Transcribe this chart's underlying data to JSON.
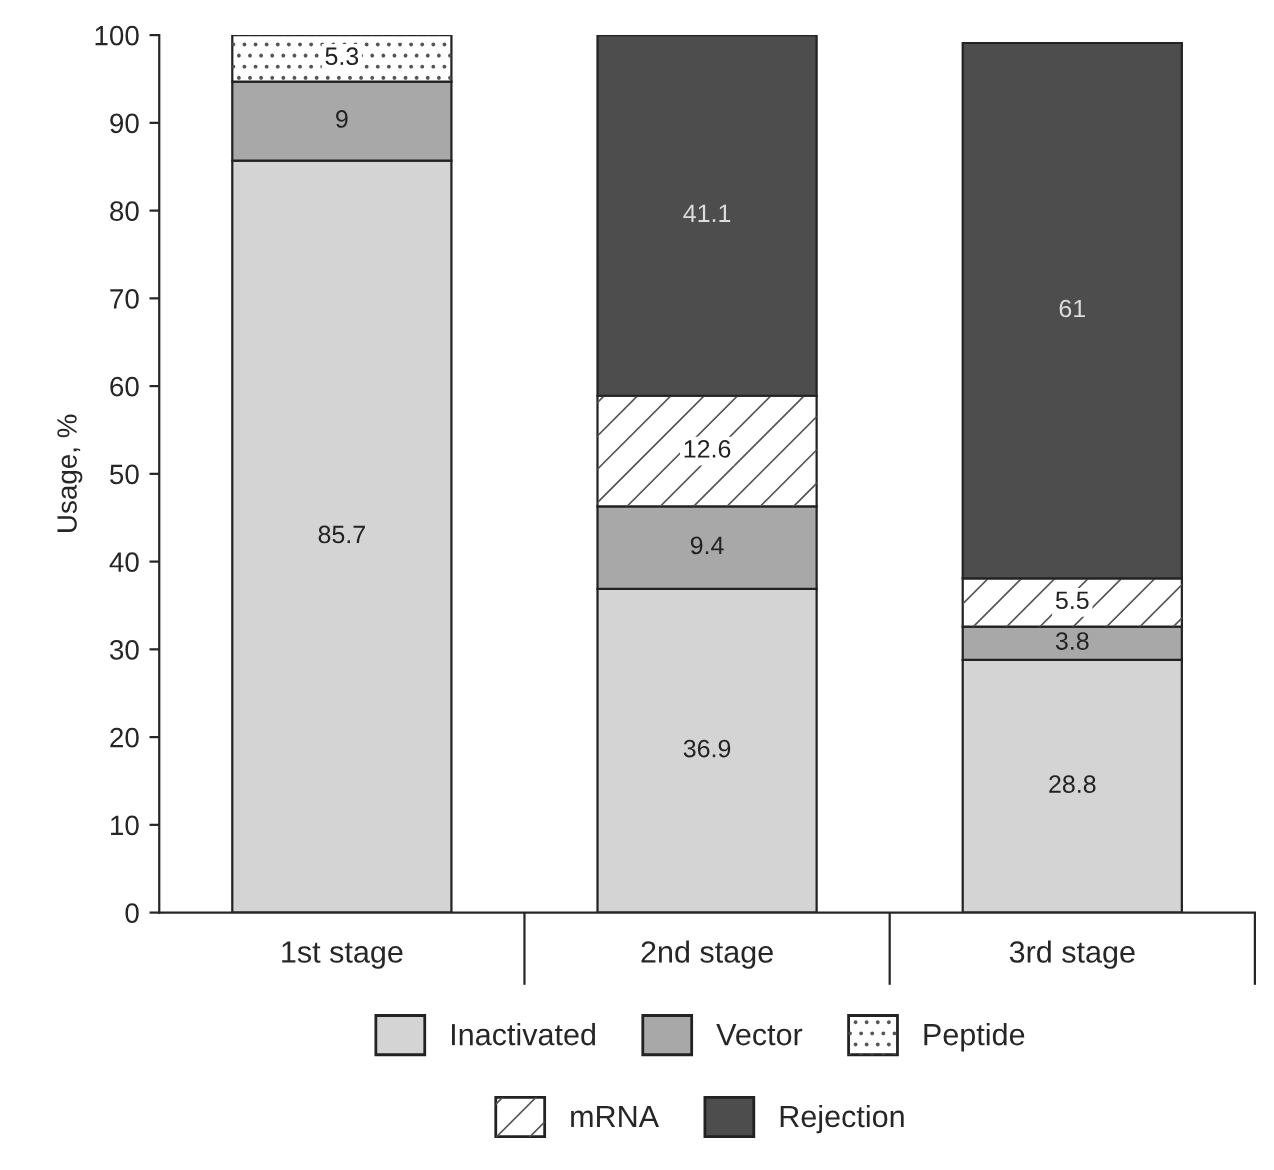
{
  "chart_data": {
    "type": "bar",
    "stacked": true,
    "ylabel": "Usage, %",
    "categories": [
      "1st stage",
      "2nd stage",
      "3rd stage"
    ],
    "series": [
      {
        "name": "Inactivated",
        "color": "#d4d4d4",
        "values": [
          85.7,
          36.9,
          28.8
        ]
      },
      {
        "name": "Vector",
        "color": "#a8a8a8",
        "values": [
          9,
          9.4,
          3.8
        ]
      },
      {
        "name": "Peptide",
        "color": "#ffffff",
        "values": [
          5.3,
          null,
          null
        ]
      },
      {
        "name": "mRNA",
        "color": "#ffffff",
        "values": [
          null,
          12.6,
          5.5
        ]
      },
      {
        "name": "Rejection",
        "color": "#4d4d4d",
        "values": [
          null,
          41.1,
          61
        ]
      }
    ],
    "ylim": [
      0,
      100
    ],
    "yticks": [
      0,
      10,
      20,
      30,
      40,
      50,
      60,
      70,
      80,
      90,
      100
    ],
    "data_labels": true,
    "grid": false,
    "legend": "bottom"
  }
}
